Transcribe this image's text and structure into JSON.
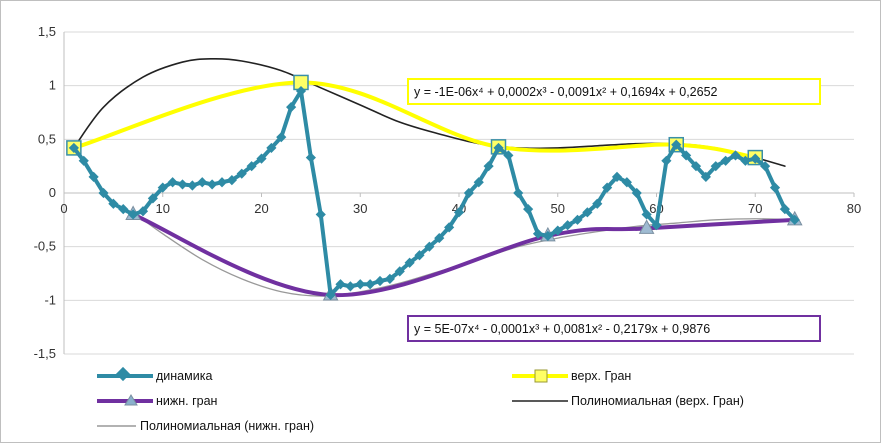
{
  "chart_data": {
    "type": "line",
    "title": "",
    "xlabel": "",
    "ylabel": "",
    "xlim": [
      0,
      80
    ],
    "ylim": [
      -1.5,
      1.5
    ],
    "x_ticks": [
      "0",
      "10",
      "20",
      "30",
      "40",
      "50",
      "60",
      "70",
      "80"
    ],
    "y_ticks": [
      "1,5",
      "1",
      "0,5",
      "0",
      "-0,5",
      "-1",
      "-1,5"
    ],
    "x_tick_values": [
      0,
      10,
      20,
      30,
      40,
      50,
      60,
      70,
      80
    ],
    "y_tick_values": [
      1.5,
      1,
      0.5,
      0,
      -0.5,
      -1,
      -1.5
    ],
    "grid": "horizontal",
    "legend_position": "bottom",
    "series": [
      {
        "name": "динамика",
        "color": "#2e8ba5",
        "marker": "diamond",
        "x": [
          1,
          2,
          3,
          4,
          5,
          6,
          7,
          8,
          9,
          10,
          11,
          12,
          13,
          14,
          15,
          16,
          17,
          18,
          19,
          20,
          21,
          22,
          23,
          24,
          25,
          26,
          27,
          28,
          29,
          30,
          31,
          32,
          33,
          34,
          35,
          36,
          37,
          38,
          39,
          40,
          41,
          42,
          43,
          44,
          45,
          46,
          47,
          48,
          49,
          50,
          51,
          52,
          53,
          54,
          55,
          56,
          57,
          58,
          59,
          60,
          61,
          62,
          63,
          64,
          65,
          66,
          67,
          68,
          69,
          70,
          71,
          72,
          73,
          74
        ],
        "y": [
          0.42,
          0.3,
          0.15,
          0.0,
          -0.1,
          -0.15,
          -0.2,
          -0.17,
          -0.05,
          0.05,
          0.1,
          0.08,
          0.07,
          0.1,
          0.08,
          0.1,
          0.12,
          0.18,
          0.25,
          0.32,
          0.42,
          0.52,
          0.8,
          0.95,
          0.33,
          -0.2,
          -0.95,
          -0.85,
          -0.87,
          -0.85,
          -0.85,
          -0.82,
          -0.8,
          -0.73,
          -0.65,
          -0.58,
          -0.5,
          -0.42,
          -0.32,
          -0.18,
          0.0,
          0.1,
          0.25,
          0.42,
          0.35,
          0.0,
          -0.15,
          -0.38,
          -0.4,
          -0.35,
          -0.3,
          -0.25,
          -0.18,
          -0.1,
          0.05,
          0.15,
          0.1,
          0.0,
          -0.2,
          -0.3,
          0.3,
          0.45,
          0.35,
          0.25,
          0.15,
          0.25,
          0.3,
          0.35,
          0.3,
          0.32,
          0.25,
          0.05,
          -0.15,
          -0.25
        ]
      },
      {
        "name": "верх. Гран",
        "color": "#ffff00",
        "marker": "square",
        "x": [
          1,
          24,
          44,
          62,
          70
        ],
        "y": [
          0.42,
          1.03,
          0.43,
          0.45,
          0.33
        ]
      },
      {
        "name": "нижн. гран",
        "color": "#7030a0",
        "marker": "triangle",
        "x": [
          7,
          27,
          49,
          59,
          74
        ],
        "y": [
          -0.2,
          -0.95,
          -0.4,
          -0.33,
          -0.25
        ]
      },
      {
        "name": "Полиномиальная (верх. Гран)",
        "color": "#222222",
        "marker": "none",
        "x": [
          1,
          4,
          8,
          12,
          15,
          18,
          22,
          26,
          30,
          34,
          38,
          42,
          46,
          50,
          54,
          58,
          62,
          66,
          70,
          73
        ],
        "y": [
          0.42,
          0.8,
          1.08,
          1.22,
          1.25,
          1.23,
          1.14,
          0.98,
          0.82,
          0.66,
          0.55,
          0.46,
          0.42,
          0.42,
          0.44,
          0.46,
          0.46,
          0.42,
          0.33,
          0.25
        ]
      },
      {
        "name": "Полиномиальная (нижн. гран)",
        "color": "#999999",
        "marker": "none",
        "x": [
          7,
          10,
          14,
          18,
          22,
          26,
          30,
          34,
          38,
          42,
          46,
          50,
          54,
          58,
          62,
          66,
          70,
          74
        ],
        "y": [
          -0.18,
          -0.38,
          -0.62,
          -0.8,
          -0.92,
          -0.96,
          -0.92,
          -0.84,
          -0.73,
          -0.62,
          -0.5,
          -0.42,
          -0.36,
          -0.31,
          -0.28,
          -0.25,
          -0.24,
          -0.25
        ]
      }
    ],
    "annotations": [
      {
        "text": "y = -1E-06x⁴ + 0,0002x³ - 0,0091x² + 0,1694x + 0,2652",
        "border_color": "#ffff00"
      },
      {
        "text": "y = 5E-07x⁴ - 0,0001x³ + 0,0081x² - 0,2179x + 0,9876",
        "border_color": "#7030a0"
      }
    ]
  }
}
